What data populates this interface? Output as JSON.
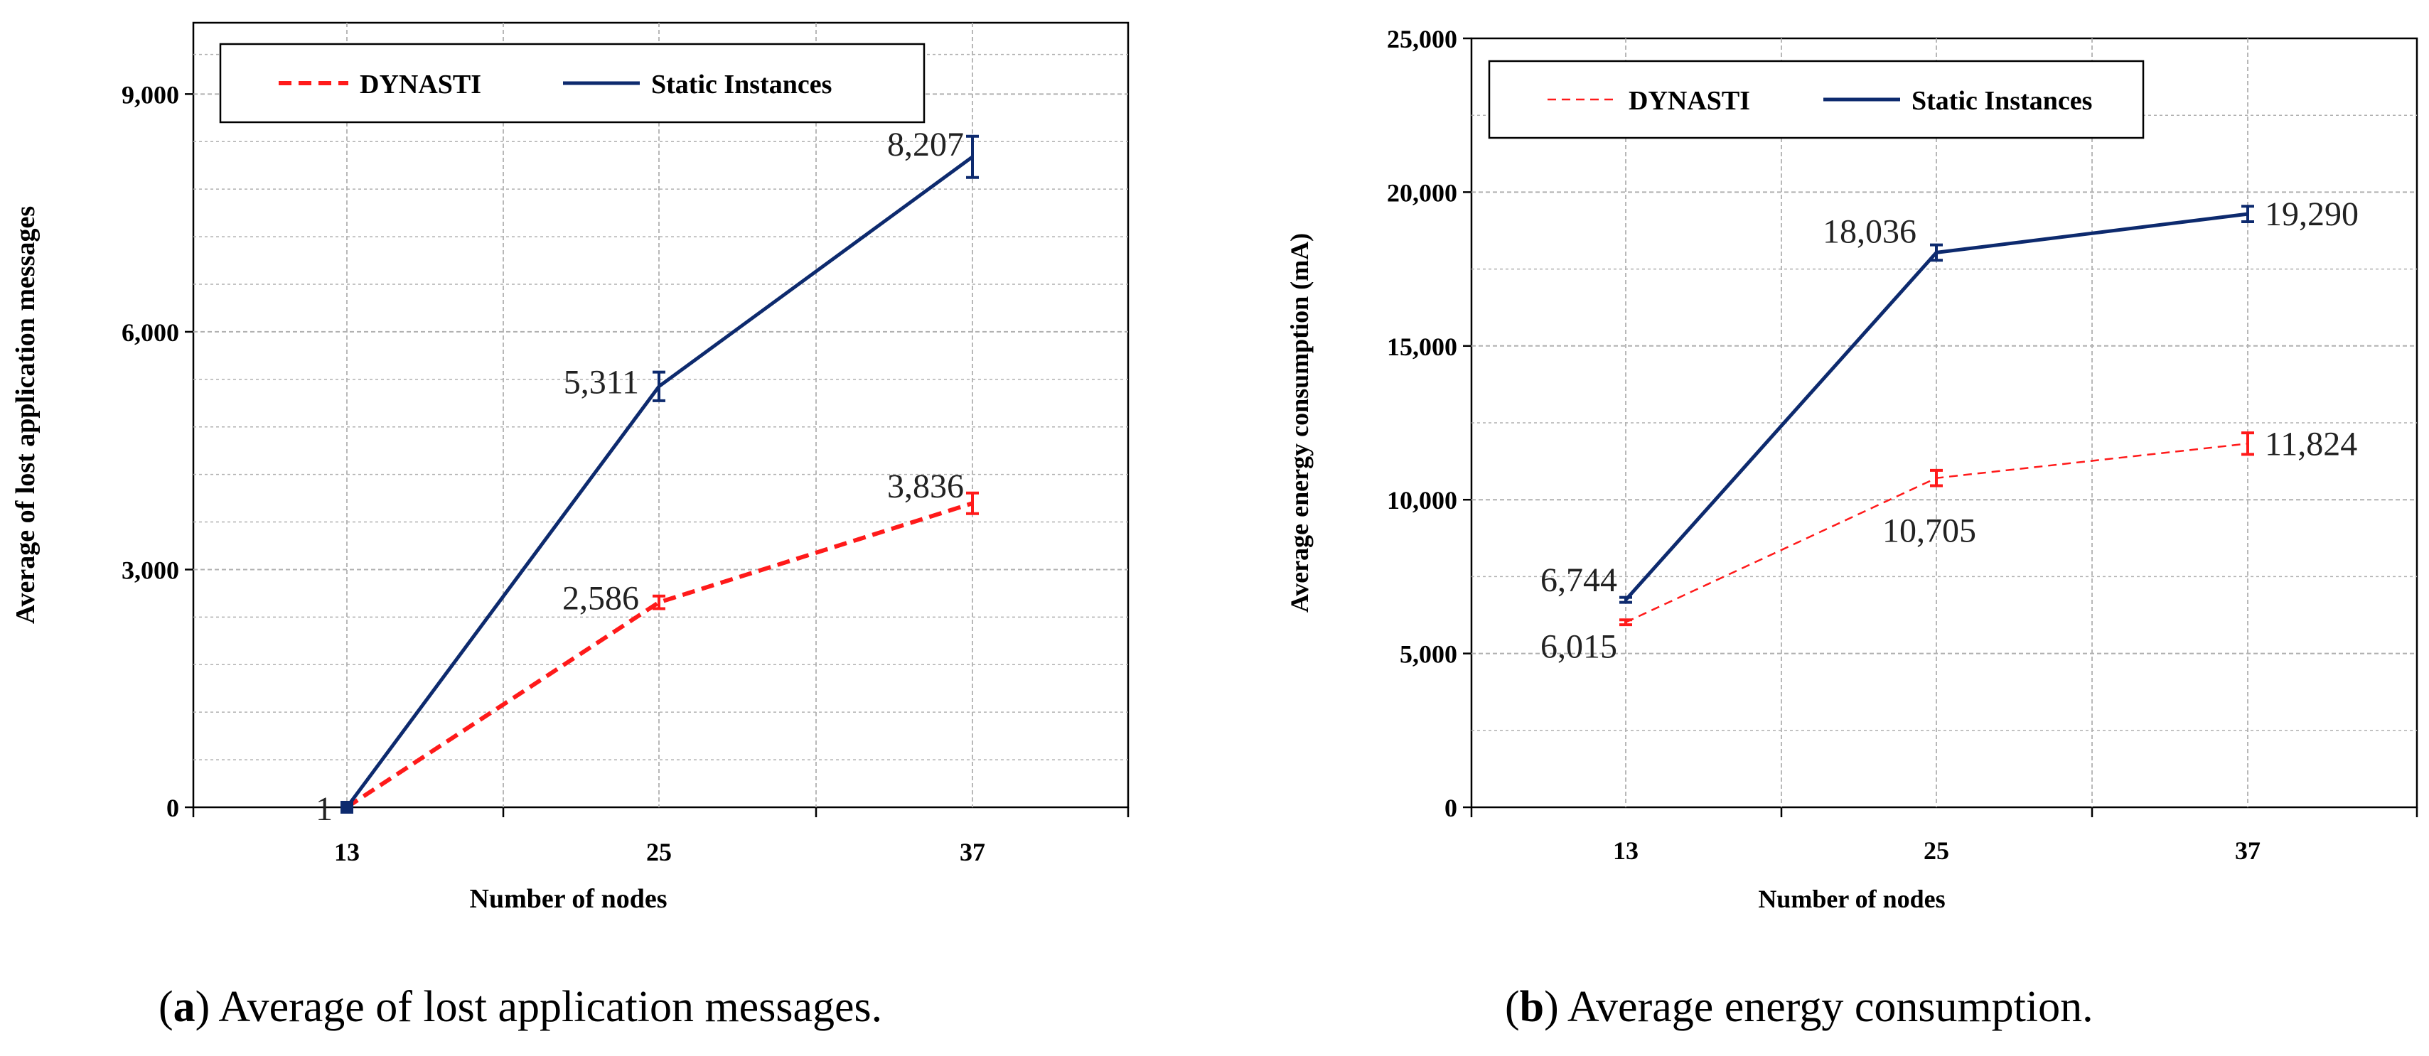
{
  "colors": {
    "dynasti": "#ff1a1a",
    "static": "#0d2a6e",
    "grid": "#b0b0b0"
  },
  "chart_data": [
    {
      "type": "line",
      "id": "a",
      "caption_letter": "a",
      "caption_text": " Average of lost application messages.",
      "categories": [
        "13",
        "25",
        "37"
      ],
      "xlabel": "Number of nodes",
      "ylabel": "Average of lost application messages",
      "ylim": [
        0,
        9900
      ],
      "yticks": [
        0,
        3000,
        6000,
        9000
      ],
      "ytick_labels": [
        "0",
        "3,000",
        "6,000",
        "9,000"
      ],
      "grid": true,
      "legend_position": "top",
      "series": [
        {
          "name": "DYNASTI",
          "values": [
            1,
            2586,
            3836
          ],
          "errors": [
            0,
            80,
            130
          ],
          "labels": [
            "1",
            "2,586",
            "3,836"
          ],
          "style": "dashed"
        },
        {
          "name": "Static Instances",
          "values": [
            0,
            5311,
            8207
          ],
          "errors": [
            0,
            180,
            260
          ],
          "labels": [
            "",
            "5,311",
            "8,207"
          ],
          "style": "solid"
        }
      ]
    },
    {
      "type": "line",
      "id": "b",
      "caption_letter": "b",
      "caption_text": " Average energy consumption.",
      "categories": [
        "13",
        "25",
        "37"
      ],
      "xlabel": "Number of nodes",
      "ylabel": "Average energy consumption (mA)",
      "ylim": [
        0,
        25000
      ],
      "yticks": [
        0,
        5000,
        10000,
        15000,
        20000,
        25000
      ],
      "ytick_labels": [
        "0",
        "5,000",
        "10,000",
        "15,000",
        "20,000",
        "25,000"
      ],
      "grid": true,
      "legend_position": "top",
      "series": [
        {
          "name": "DYNASTI",
          "values": [
            6015,
            10705,
            11824
          ],
          "errors": [
            80,
            250,
            350
          ],
          "labels": [
            "6,015",
            "10,705",
            "11,824"
          ],
          "style": "dashed"
        },
        {
          "name": "Static Instances",
          "values": [
            6744,
            18036,
            19290
          ],
          "errors": [
            80,
            250,
            250
          ],
          "labels": [
            "6,744",
            "18,036",
            "19,290"
          ],
          "style": "solid"
        }
      ]
    }
  ]
}
